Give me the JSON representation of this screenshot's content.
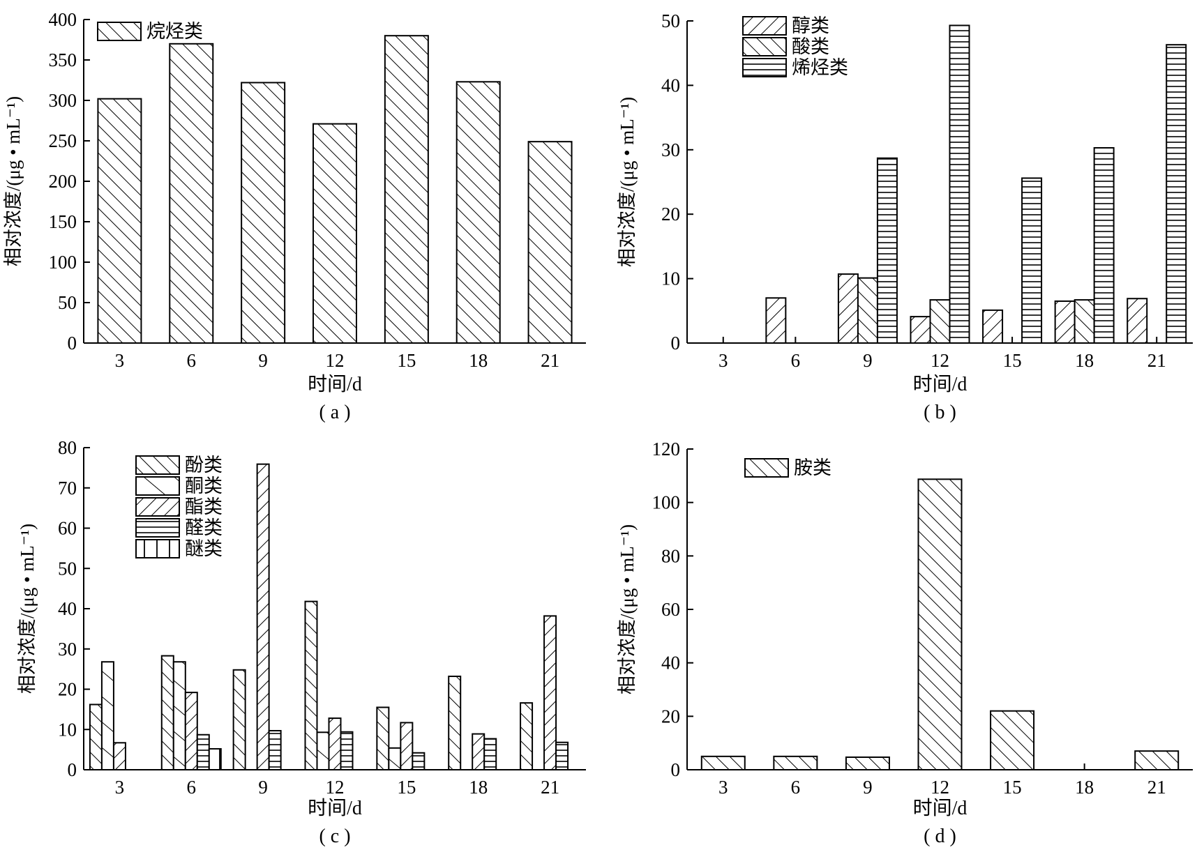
{
  "chart_data": [
    {
      "type": "bar",
      "panel_label": "( a )",
      "xlabel": "时间/d",
      "ylabel": "相对浓度/(μg • mL⁻¹)",
      "categories": [
        "3",
        "6",
        "9",
        "12",
        "15",
        "18",
        "21"
      ],
      "ylim": [
        0,
        400
      ],
      "yticks": [
        0,
        50,
        100,
        150,
        200,
        250,
        300,
        350,
        400
      ],
      "legend_position": "top-left",
      "grid": false,
      "series": [
        {
          "name": "烷烃类",
          "pattern": "diag-fwd",
          "values": [
            302,
            370,
            322,
            271,
            380,
            323,
            249
          ]
        }
      ]
    },
    {
      "type": "bar",
      "panel_label": "( b )",
      "xlabel": "时间/d",
      "ylabel": "相对浓度/(μg • mL⁻¹)",
      "categories": [
        "3",
        "6",
        "9",
        "12",
        "15",
        "18",
        "21"
      ],
      "ylim": [
        0,
        50
      ],
      "yticks": [
        0,
        10,
        20,
        30,
        40,
        50
      ],
      "legend_position": "top-left",
      "grid": false,
      "series": [
        {
          "name": "醇类",
          "pattern": "diag-back",
          "values": [
            0,
            7.0,
            10.7,
            4.1,
            5.1,
            6.5,
            6.9
          ]
        },
        {
          "name": "酸类",
          "pattern": "diag-fwd",
          "values": [
            0,
            0,
            10.1,
            6.7,
            0,
            6.7,
            0
          ]
        },
        {
          "name": "烯烃类",
          "pattern": "horizontal",
          "values": [
            0,
            0,
            28.7,
            49.3,
            25.6,
            30.3,
            46.3
          ]
        }
      ]
    },
    {
      "type": "bar",
      "panel_label": "( c )",
      "xlabel": "时间/d",
      "ylabel": "相对浓度/(μg • mL⁻¹)",
      "categories": [
        "3",
        "6",
        "9",
        "12",
        "15",
        "18",
        "21"
      ],
      "ylim": [
        0,
        80
      ],
      "yticks": [
        0,
        10,
        20,
        30,
        40,
        50,
        60,
        70,
        80
      ],
      "legend_position": "top-left",
      "grid": false,
      "series": [
        {
          "name": "酚类",
          "pattern": "diag-fwd",
          "values": [
            16.2,
            28.3,
            24.8,
            41.8,
            15.5,
            23.2,
            16.6
          ]
        },
        {
          "name": "酮类",
          "pattern": "diag-fwd-sparse",
          "values": [
            26.8,
            26.8,
            0,
            9.3,
            5.4,
            0,
            0
          ]
        },
        {
          "name": "酯类",
          "pattern": "diag-back",
          "values": [
            6.7,
            19.2,
            75.9,
            12.8,
            11.7,
            8.9,
            38.2
          ]
        },
        {
          "name": "醛类",
          "pattern": "horizontal",
          "values": [
            0,
            8.7,
            9.7,
            9.4,
            4.2,
            7.7,
            6.8
          ]
        },
        {
          "name": "醚类",
          "pattern": "vertical",
          "values": [
            0,
            5.2,
            0,
            0,
            0,
            0,
            0
          ]
        }
      ]
    },
    {
      "type": "bar",
      "panel_label": "( d )",
      "xlabel": "时间/d",
      "ylabel": "相对浓度/(μg • mL⁻¹)",
      "categories": [
        "3",
        "6",
        "9",
        "12",
        "15",
        "18",
        "21"
      ],
      "ylim": [
        0,
        120
      ],
      "yticks": [
        0,
        20,
        40,
        60,
        80,
        100,
        120
      ],
      "legend_position": "top-left",
      "grid": false,
      "series": [
        {
          "name": "胺类",
          "pattern": "diag-fwd",
          "values": [
            5.0,
            5.0,
            4.7,
            108.7,
            22.0,
            0,
            7.0
          ]
        }
      ]
    }
  ]
}
